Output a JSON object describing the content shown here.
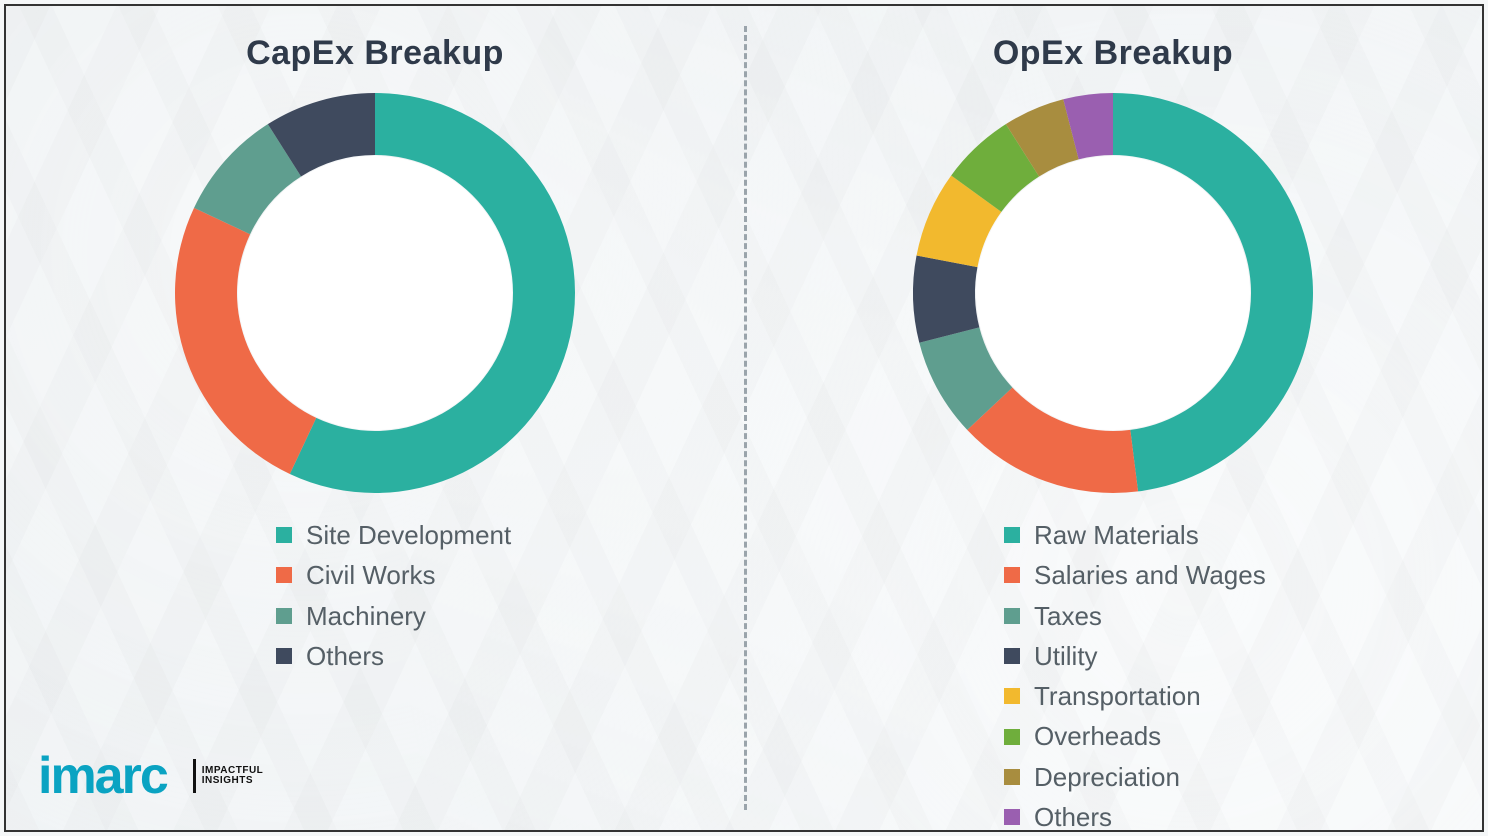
{
  "background_color": "#f5f7f8",
  "frame_border_color": "#333333",
  "divider_color": "#9aa4ab",
  "title_color": "#2f3a4a",
  "legend_text_color": "#555f66",
  "title_fontsize_pt": 26,
  "legend_fontsize_pt": 20,
  "logo": {
    "brand_text": "imarc",
    "brand_color": "#0aa3c2",
    "tagline_line1": "IMPACTFUL",
    "tagline_line2": "INSIGHTS",
    "tagline_color": "#111111"
  },
  "capex": {
    "type": "donut",
    "title": "CapEx Breakup",
    "outer_radius": 200,
    "inner_radius": 138,
    "center_fill": "#ffffff",
    "start_angle_deg": -90,
    "direction": "clockwise",
    "slices": [
      {
        "label": "Site Development",
        "value": 57,
        "color": "#2bb0a0"
      },
      {
        "label": "Civil Works",
        "value": 25,
        "color": "#ef6a47"
      },
      {
        "label": "Machinery",
        "value": 9,
        "color": "#5f9e8f"
      },
      {
        "label": "Others",
        "value": 9,
        "color": "#3f4a5e"
      }
    ]
  },
  "opex": {
    "type": "donut",
    "title": "OpEx Breakup",
    "outer_radius": 200,
    "inner_radius": 138,
    "center_fill": "#ffffff",
    "start_angle_deg": -90,
    "direction": "clockwise",
    "slices": [
      {
        "label": "Raw Materials",
        "value": 48,
        "color": "#2bb0a0"
      },
      {
        "label": "Salaries and Wages",
        "value": 15,
        "color": "#ef6a47"
      },
      {
        "label": "Taxes",
        "value": 8,
        "color": "#5f9e8f"
      },
      {
        "label": "Utility",
        "value": 7,
        "color": "#3f4a5e"
      },
      {
        "label": "Transportation",
        "value": 7,
        "color": "#f2b92e"
      },
      {
        "label": "Overheads",
        "value": 6,
        "color": "#6fae3c"
      },
      {
        "label": "Depreciation",
        "value": 5,
        "color": "#a88d3f"
      },
      {
        "label": "Others",
        "value": 4,
        "color": "#9a5fb0"
      }
    ]
  }
}
